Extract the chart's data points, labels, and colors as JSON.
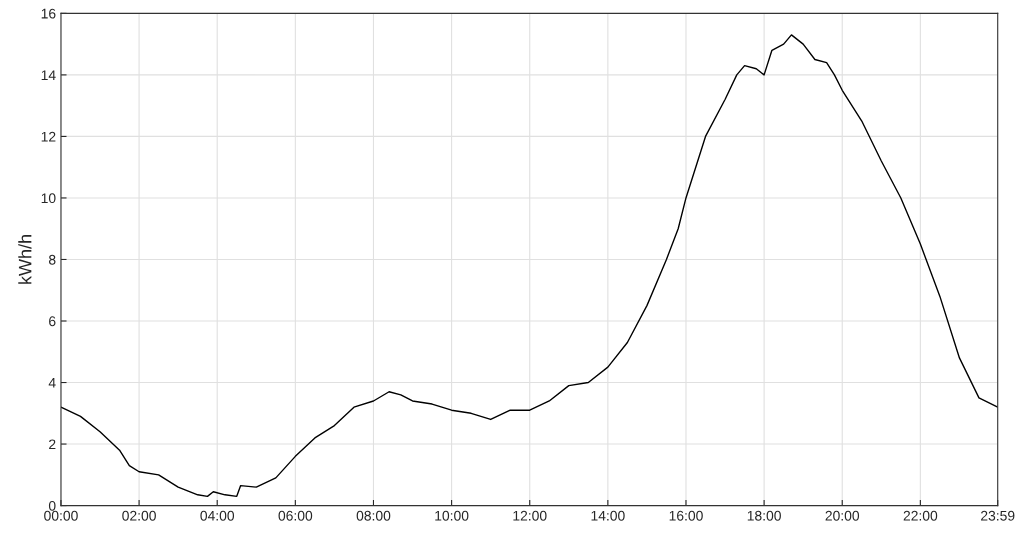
{
  "chart_data": {
    "type": "line",
    "ylabel": "kWh/h",
    "x": [
      0,
      0.5,
      1.0,
      1.5,
      1.75,
      2.0,
      2.5,
      3.0,
      3.5,
      3.75,
      3.9,
      4.2,
      4.5,
      4.6,
      5.0,
      5.5,
      6.0,
      6.5,
      7.0,
      7.5,
      8.0,
      8.4,
      8.7,
      9.0,
      9.5,
      10.0,
      10.5,
      11.0,
      11.5,
      12.0,
      12.5,
      13.0,
      13.5,
      14.0,
      14.5,
      15.0,
      15.5,
      15.8,
      16.0,
      16.5,
      17.0,
      17.3,
      17.5,
      17.8,
      18.0,
      18.2,
      18.5,
      18.7,
      19.0,
      19.3,
      19.6,
      19.8,
      20.0,
      20.5,
      21.0,
      21.5,
      22.0,
      22.5,
      23.0,
      23.5,
      23.98
    ],
    "series": [
      {
        "color": "#000000",
        "values": [
          3.2,
          2.9,
          2.4,
          1.8,
          1.3,
          1.1,
          1.0,
          0.6,
          0.35,
          0.3,
          0.45,
          0.35,
          0.3,
          0.65,
          0.6,
          0.9,
          1.6,
          2.2,
          2.6,
          3.2,
          3.4,
          3.7,
          3.6,
          3.4,
          3.3,
          3.1,
          3.0,
          2.8,
          3.1,
          3.1,
          3.4,
          3.9,
          4.0,
          4.5,
          5.3,
          6.5,
          8.0,
          9.0,
          10.0,
          12.0,
          13.2,
          14.0,
          14.3,
          14.2,
          14.0,
          14.8,
          15.0,
          15.3,
          15.0,
          14.5,
          14.4,
          14.0,
          13.5,
          12.5,
          11.2,
          10.0,
          8.5,
          6.8,
          4.8,
          3.5,
          3.2
        ]
      }
    ],
    "xlim": [
      0,
      23.98
    ],
    "xticks": [
      {
        "value": 0,
        "label": "00:00"
      },
      {
        "value": 2,
        "label": "02:00"
      },
      {
        "value": 4,
        "label": "04:00"
      },
      {
        "value": 6,
        "label": "06:00"
      },
      {
        "value": 8,
        "label": "08:00"
      },
      {
        "value": 10,
        "label": "10:00"
      },
      {
        "value": 12,
        "label": "12:00"
      },
      {
        "value": 14,
        "label": "14:00"
      },
      {
        "value": 16,
        "label": "16:00"
      },
      {
        "value": 18,
        "label": "18:00"
      },
      {
        "value": 20,
        "label": "20:00"
      },
      {
        "value": 22,
        "label": "22:00"
      },
      {
        "value": 23.98,
        "label": "23:59"
      }
    ],
    "ylim": [
      0,
      16
    ],
    "yticks": [
      0,
      2,
      4,
      6,
      8,
      10,
      12,
      14,
      16
    ],
    "grid": true,
    "legend": false
  }
}
